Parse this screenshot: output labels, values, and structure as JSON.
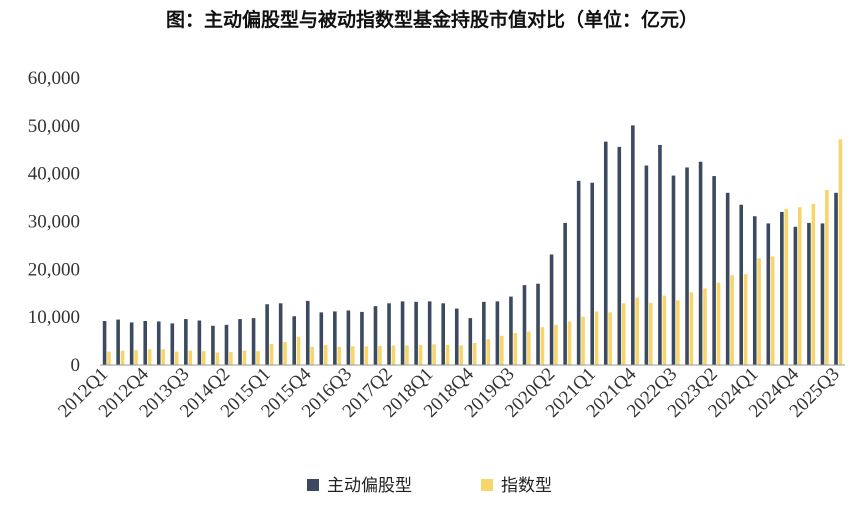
{
  "chart_data": {
    "type": "bar",
    "title": "图：主动偏股型与被动指数型基金持股市值对比（单位：亿元）",
    "xlabel": "",
    "ylabel": "",
    "ylim": [
      0,
      60000
    ],
    "yticks": [
      "0",
      "10,000",
      "20,000",
      "30,000",
      "40,000",
      "50,000",
      "60,000"
    ],
    "grid": false,
    "legend_position": "bottom",
    "colors": {
      "active": "#3b4a5e",
      "index": "#f7d56b"
    },
    "categories": [
      "2012Q1",
      "2012Q2",
      "2012Q3",
      "2012Q4",
      "2013Q1",
      "2013Q2",
      "2013Q3",
      "2013Q4",
      "2014Q1",
      "2014Q2",
      "2014Q3",
      "2014Q4",
      "2015Q1",
      "2015Q2",
      "2015Q3",
      "2015Q4",
      "2016Q1",
      "2016Q2",
      "2016Q3",
      "2016Q4",
      "2017Q1",
      "2017Q2",
      "2017Q3",
      "2017Q4",
      "2018Q1",
      "2018Q2",
      "2018Q3",
      "2018Q4",
      "2019Q1",
      "2019Q2",
      "2019Q3",
      "2019Q4",
      "2020Q1",
      "2020Q2",
      "2020Q3",
      "2020Q4",
      "2021Q1",
      "2021Q2",
      "2021Q3",
      "2021Q4",
      "2022Q1",
      "2022Q2",
      "2022Q3",
      "2022Q4",
      "2023Q1",
      "2023Q2",
      "2023Q3",
      "2023Q4",
      "2024Q1",
      "2024Q2",
      "2024Q3",
      "2024Q4",
      "2025Q1",
      "2025Q2",
      "2025Q3"
    ],
    "tick_labels": [
      "2012Q1",
      "2012Q4",
      "2013Q3",
      "2014Q2",
      "2015Q1",
      "2015Q4",
      "2016Q3",
      "2017Q2",
      "2018Q1",
      "2018Q4",
      "2019Q3",
      "2020Q2",
      "2021Q1",
      "2021Q4",
      "2022Q3",
      "2023Q2",
      "2024Q1",
      "2024Q4",
      "2025Q3"
    ],
    "series": [
      {
        "name": "主动偏股型",
        "values": [
          9200,
          9500,
          8900,
          9200,
          9100,
          8700,
          9600,
          9300,
          8200,
          8400,
          9600,
          9800,
          12700,
          12900,
          10200,
          13400,
          11000,
          11200,
          11400,
          11100,
          12300,
          12900,
          13300,
          13200,
          13300,
          12900,
          11800,
          9800,
          13200,
          13300,
          14300,
          16700,
          17000,
          23100,
          29700,
          38500,
          38100,
          46700,
          45600,
          50100,
          41700,
          46000,
          39600,
          41300,
          42500,
          39500,
          36000,
          33500,
          31100,
          29600,
          32000,
          28900,
          29700,
          29600,
          36000
        ]
      },
      {
        "name": "指数型",
        "values": [
          2800,
          3000,
          3100,
          3300,
          3300,
          2800,
          3000,
          2900,
          2600,
          2700,
          3000,
          2900,
          4400,
          4800,
          5900,
          3800,
          4200,
          3800,
          3900,
          3900,
          4000,
          4100,
          4100,
          4200,
          4300,
          4200,
          4100,
          4600,
          5400,
          6100,
          6700,
          7000,
          7900,
          8400,
          9100,
          10100,
          11200,
          11000,
          12900,
          14100,
          13000,
          14500,
          13500,
          15200,
          16000,
          17200,
          18800,
          19000,
          22300,
          22700,
          32600,
          33000,
          33700,
          36600,
          47200
        ]
      }
    ]
  }
}
